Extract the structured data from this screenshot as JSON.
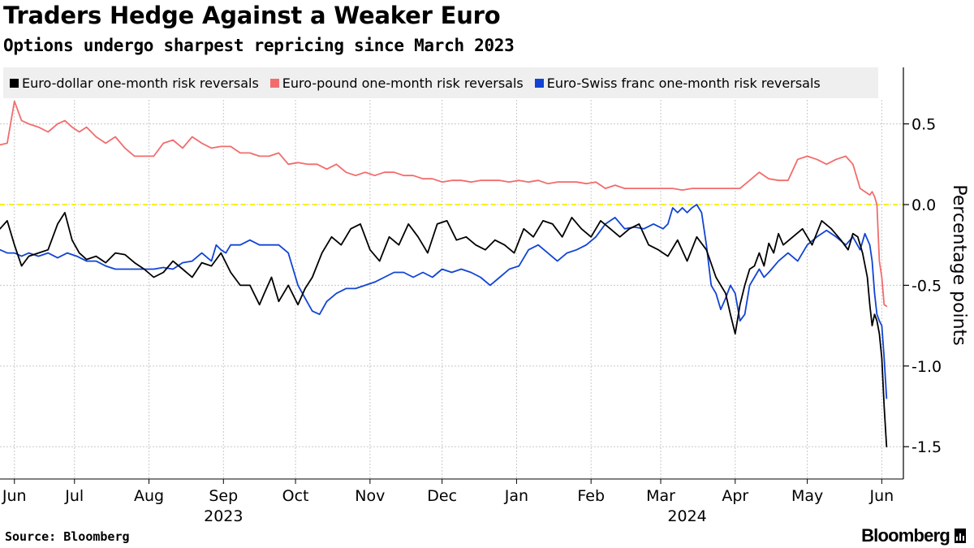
{
  "header": {
    "title": "Traders Hedge Against a Weaker Euro",
    "subtitle": "Options undergo sharpest repricing since March 2023"
  },
  "footer": {
    "source": "Source: Bloomberg",
    "brand": "Bloomberg"
  },
  "chart_data": {
    "type": "line",
    "title": "Traders Hedge Against a Weaker Euro",
    "subtitle": "Options undergo sharpest repricing since March 2023",
    "ylabel": "Percentage points",
    "xlabel": "",
    "ylim": [
      -1.7,
      0.85
    ],
    "yticks": [
      0.5,
      0.0,
      -0.5,
      -1.0,
      -1.5
    ],
    "ytick_labels": [
      "0.5",
      "0.0",
      "-0.5",
      "-1.0",
      "-1.5"
    ],
    "xlim": [
      0,
      376
    ],
    "xticks": [
      {
        "label": "Jun",
        "pos": 6
      },
      {
        "label": "Jul",
        "pos": 31
      },
      {
        "label": "Aug",
        "pos": 62
      },
      {
        "label": "Sep",
        "pos": 93
      },
      {
        "label": "Oct",
        "pos": 123
      },
      {
        "label": "Nov",
        "pos": 154
      },
      {
        "label": "Dec",
        "pos": 184
      },
      {
        "label": "Jan",
        "pos": 215
      },
      {
        "label": "Feb",
        "pos": 246
      },
      {
        "label": "Mar",
        "pos": 275
      },
      {
        "label": "Apr",
        "pos": 306
      },
      {
        "label": "May",
        "pos": 336
      },
      {
        "label": "Jun",
        "pos": 367
      }
    ],
    "year_labels": [
      {
        "label": "2023",
        "pos": 93
      },
      {
        "label": "2024",
        "pos": 286
      }
    ],
    "grid": true,
    "zero_line": {
      "value": 0.0,
      "color": "#f5f21a",
      "style": "dashed"
    },
    "legend_position": "top",
    "series": [
      {
        "name": "Euro-dollar one-month risk reversals",
        "color": "#000000",
        "x": [
          0,
          3,
          6,
          9,
          12,
          16,
          20,
          24,
          27,
          30,
          33,
          36,
          40,
          44,
          48,
          52,
          56,
          60,
          64,
          68,
          72,
          76,
          80,
          84,
          88,
          92,
          96,
          100,
          104,
          108,
          110,
          113,
          116,
          120,
          124,
          127,
          130,
          134,
          138,
          142,
          146,
          150,
          154,
          158,
          162,
          166,
          170,
          174,
          178,
          182,
          186,
          190,
          194,
          198,
          202,
          206,
          210,
          214,
          218,
          222,
          226,
          230,
          234,
          238,
          242,
          246,
          250,
          254,
          258,
          262,
          266,
          270,
          274,
          278,
          282,
          286,
          290,
          294,
          298,
          302,
          304,
          306,
          308,
          310,
          312,
          314,
          316,
          318,
          320,
          322,
          324,
          326,
          330,
          334,
          338,
          342,
          346,
          350,
          353,
          355,
          357,
          359,
          361,
          362,
          363,
          364,
          365,
          366,
          367,
          368,
          369
        ],
        "values": [
          -0.15,
          -0.1,
          -0.25,
          -0.38,
          -0.32,
          -0.3,
          -0.28,
          -0.12,
          -0.05,
          -0.22,
          -0.3,
          -0.34,
          -0.32,
          -0.36,
          -0.3,
          -0.31,
          -0.36,
          -0.4,
          -0.45,
          -0.42,
          -0.35,
          -0.4,
          -0.45,
          -0.36,
          -0.38,
          -0.3,
          -0.42,
          -0.5,
          -0.5,
          -0.62,
          -0.55,
          -0.45,
          -0.6,
          -0.5,
          -0.62,
          -0.52,
          -0.45,
          -0.3,
          -0.2,
          -0.25,
          -0.15,
          -0.12,
          -0.28,
          -0.35,
          -0.2,
          -0.25,
          -0.12,
          -0.2,
          -0.3,
          -0.12,
          -0.1,
          -0.22,
          -0.2,
          -0.25,
          -0.28,
          -0.22,
          -0.25,
          -0.3,
          -0.15,
          -0.2,
          -0.1,
          -0.12,
          -0.2,
          -0.08,
          -0.15,
          -0.2,
          -0.1,
          -0.15,
          -0.2,
          -0.15,
          -0.12,
          -0.25,
          -0.28,
          -0.32,
          -0.22,
          -0.35,
          -0.2,
          -0.28,
          -0.45,
          -0.55,
          -0.68,
          -0.8,
          -0.62,
          -0.5,
          -0.4,
          -0.38,
          -0.3,
          -0.38,
          -0.24,
          -0.3,
          -0.18,
          -0.25,
          -0.2,
          -0.15,
          -0.25,
          -0.1,
          -0.15,
          -0.22,
          -0.28,
          -0.18,
          -0.2,
          -0.3,
          -0.45,
          -0.62,
          -0.75,
          -0.68,
          -0.72,
          -0.8,
          -0.95,
          -1.25,
          -1.5
        ]
      },
      {
        "name": "Euro-pound one-month risk reversals",
        "color": "#f26c6c",
        "x": [
          0,
          3,
          6,
          9,
          12,
          16,
          20,
          24,
          27,
          30,
          33,
          36,
          40,
          44,
          48,
          52,
          56,
          60,
          64,
          68,
          72,
          76,
          80,
          84,
          88,
          92,
          96,
          100,
          104,
          108,
          112,
          116,
          120,
          124,
          128,
          132,
          136,
          140,
          144,
          148,
          152,
          156,
          160,
          164,
          168,
          172,
          176,
          180,
          184,
          188,
          192,
          196,
          200,
          204,
          208,
          212,
          216,
          220,
          224,
          228,
          232,
          236,
          240,
          244,
          248,
          252,
          256,
          260,
          264,
          268,
          272,
          276,
          280,
          284,
          288,
          292,
          296,
          300,
          304,
          308,
          312,
          316,
          320,
          324,
          328,
          332,
          336,
          340,
          344,
          348,
          352,
          355,
          358,
          360,
          362,
          363,
          364,
          365,
          366,
          367,
          368,
          369
        ],
        "values": [
          0.37,
          0.38,
          0.64,
          0.52,
          0.5,
          0.48,
          0.45,
          0.5,
          0.52,
          0.48,
          0.45,
          0.48,
          0.42,
          0.38,
          0.42,
          0.35,
          0.3,
          0.3,
          0.3,
          0.38,
          0.4,
          0.35,
          0.42,
          0.38,
          0.35,
          0.36,
          0.36,
          0.32,
          0.32,
          0.3,
          0.3,
          0.32,
          0.25,
          0.26,
          0.25,
          0.25,
          0.22,
          0.25,
          0.2,
          0.18,
          0.2,
          0.18,
          0.2,
          0.2,
          0.18,
          0.18,
          0.16,
          0.16,
          0.14,
          0.15,
          0.15,
          0.14,
          0.15,
          0.15,
          0.15,
          0.14,
          0.15,
          0.14,
          0.15,
          0.13,
          0.14,
          0.14,
          0.14,
          0.13,
          0.14,
          0.1,
          0.12,
          0.1,
          0.1,
          0.1,
          0.1,
          0.1,
          0.1,
          0.09,
          0.1,
          0.1,
          0.1,
          0.1,
          0.1,
          0.1,
          0.15,
          0.2,
          0.16,
          0.15,
          0.15,
          0.28,
          0.3,
          0.28,
          0.25,
          0.28,
          0.3,
          0.25,
          0.1,
          0.08,
          0.06,
          0.08,
          0.05,
          0.0,
          -0.35,
          -0.45,
          -0.62,
          -0.63
        ]
      },
      {
        "name": "Euro-Swiss franc one-month risk reversals",
        "color": "#1144d4",
        "x": [
          0,
          3,
          6,
          9,
          12,
          16,
          20,
          24,
          28,
          32,
          36,
          40,
          44,
          48,
          52,
          56,
          60,
          64,
          68,
          72,
          76,
          80,
          84,
          88,
          90,
          92,
          94,
          96,
          100,
          104,
          108,
          112,
          116,
          120,
          124,
          127,
          130,
          133,
          136,
          140,
          144,
          148,
          152,
          156,
          160,
          164,
          168,
          172,
          176,
          180,
          184,
          188,
          192,
          196,
          200,
          204,
          208,
          212,
          216,
          220,
          224,
          228,
          232,
          236,
          240,
          244,
          248,
          252,
          256,
          260,
          264,
          268,
          272,
          276,
          278,
          280,
          282,
          284,
          286,
          288,
          290,
          292,
          294,
          296,
          298,
          300,
          302,
          304,
          306,
          308,
          310,
          312,
          314,
          316,
          318,
          320,
          324,
          328,
          332,
          336,
          340,
          344,
          348,
          352,
          355,
          358,
          360,
          362,
          363,
          364,
          365,
          366,
          367,
          368,
          369
        ],
        "values": [
          -0.28,
          -0.3,
          -0.3,
          -0.32,
          -0.3,
          -0.32,
          -0.3,
          -0.33,
          -0.3,
          -0.32,
          -0.35,
          -0.35,
          -0.38,
          -0.4,
          -0.4,
          -0.4,
          -0.4,
          -0.4,
          -0.39,
          -0.4,
          -0.36,
          -0.35,
          -0.3,
          -0.35,
          -0.25,
          -0.28,
          -0.3,
          -0.25,
          -0.25,
          -0.22,
          -0.25,
          -0.25,
          -0.25,
          -0.3,
          -0.5,
          -0.58,
          -0.66,
          -0.68,
          -0.6,
          -0.55,
          -0.52,
          -0.52,
          -0.5,
          -0.48,
          -0.45,
          -0.42,
          -0.42,
          -0.45,
          -0.42,
          -0.45,
          -0.4,
          -0.42,
          -0.4,
          -0.42,
          -0.45,
          -0.5,
          -0.45,
          -0.4,
          -0.38,
          -0.28,
          -0.25,
          -0.3,
          -0.35,
          -0.3,
          -0.28,
          -0.25,
          -0.2,
          -0.12,
          -0.08,
          -0.15,
          -0.14,
          -0.15,
          -0.12,
          -0.15,
          -0.12,
          -0.02,
          -0.05,
          -0.02,
          -0.05,
          -0.02,
          0.0,
          -0.05,
          -0.25,
          -0.5,
          -0.55,
          -0.65,
          -0.58,
          -0.5,
          -0.55,
          -0.72,
          -0.68,
          -0.5,
          -0.45,
          -0.4,
          -0.45,
          -0.42,
          -0.35,
          -0.3,
          -0.35,
          -0.25,
          -0.2,
          -0.16,
          -0.2,
          -0.25,
          -0.2,
          -0.28,
          -0.18,
          -0.25,
          -0.35,
          -0.55,
          -0.68,
          -0.72,
          -0.75,
          -0.95,
          -1.2
        ]
      }
    ]
  }
}
